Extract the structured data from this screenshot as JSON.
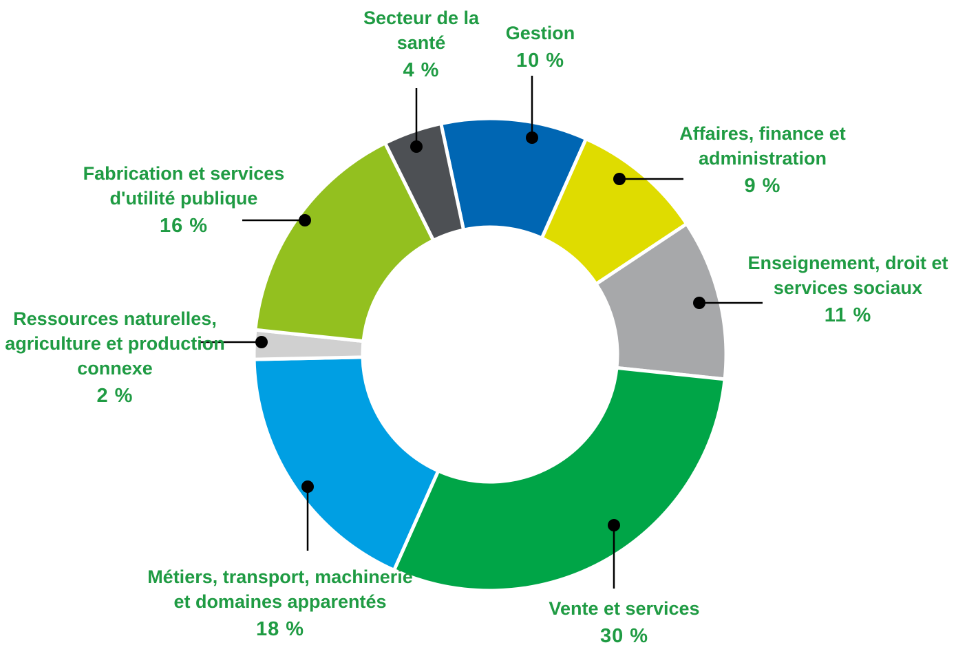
{
  "chart_data": {
    "type": "pie",
    "categories": [
      "Gestion",
      "Affaires, finance et administration",
      "Enseignement, droit et services sociaux",
      "Vente et services",
      "Métiers, transport, machinerie et domaines apparentés",
      "Ressources naturelles, agriculture et production connexe",
      "Fabrication et services d'utilité publique",
      "Secteur de la santé"
    ],
    "values": [
      10,
      9,
      11,
      30,
      18,
      2,
      16,
      4
    ],
    "value_labels": [
      "10 %",
      "9 %",
      "11 %",
      "30 %",
      "18 %",
      "2 %",
      "16 %",
      "4 %"
    ],
    "colors": [
      "#0066b3",
      "#dfdc00",
      "#a7a8aa",
      "#00a547",
      "#009fe3",
      "#d0d0d0",
      "#93c01f",
      "#4d5054"
    ]
  }
}
